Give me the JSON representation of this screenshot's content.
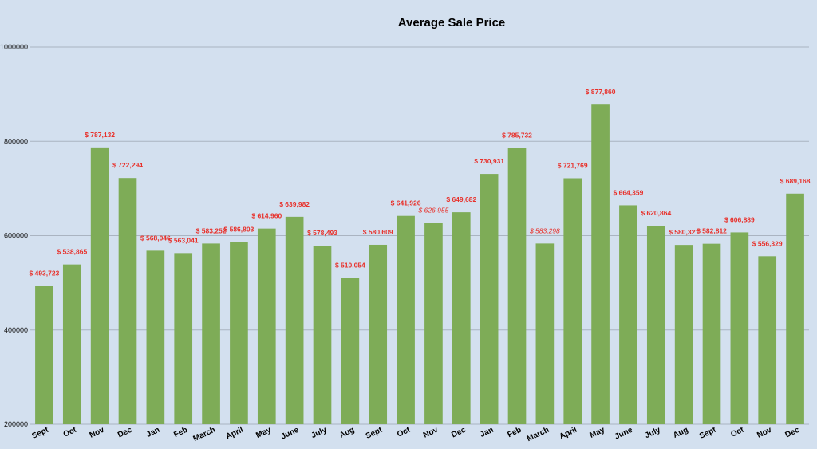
{
  "chart_data": {
    "type": "bar",
    "title": "Average Sale Price",
    "xlabel": "",
    "ylabel": "",
    "ylim": [
      200000,
      1000000
    ],
    "yticks": [
      "200000",
      "400000",
      "600000",
      "800000",
      "1000000"
    ],
    "grid": true,
    "bar_color": "#7eac57",
    "label_color": "#e8302a",
    "background": "#d3e0ef",
    "categories": [
      "Sept",
      "Oct",
      "Nov",
      "Dec",
      "Jan",
      "Feb",
      "March",
      "April",
      "May",
      "June",
      "July",
      "Aug",
      "Sept",
      "Oct",
      "Nov",
      "Dec",
      "Jan",
      "Feb",
      "March",
      "April",
      "May",
      "June",
      "July",
      "Aug",
      "Sept",
      "Oct",
      "Nov",
      "Dec"
    ],
    "values": [
      493723,
      538865,
      787132,
      722294,
      568046,
      563041,
      583252,
      586803,
      614960,
      639982,
      578493,
      510054,
      580609,
      641926,
      626955,
      649682,
      730931,
      785732,
      583298,
      721769,
      877860,
      664359,
      620864,
      580321,
      582812,
      606889,
      556329,
      689168
    ],
    "data_labels": [
      "$ 493,723",
      "$ 538,865",
      "$ 787,132",
      "$ 722,294",
      "$ 568,046",
      "$ 563,041",
      "$ 583,252",
      "$ 586,803",
      "$ 614,960",
      "$ 639,982",
      "$ 578,493",
      "$ 510,054",
      "$ 580,609",
      "$ 641,926",
      "$ 626,955",
      "$ 649,682",
      "$ 730,931",
      "$ 785,732",
      "$ 583,298",
      "$ 721,769",
      "$ 877,860",
      "$ 664,359",
      "$ 620,864",
      "$ 580,321",
      "$ 582,812",
      "$ 606,889",
      "$ 556,329",
      "$ 689,168"
    ],
    "italic_labels": [
      14,
      18
    ]
  }
}
